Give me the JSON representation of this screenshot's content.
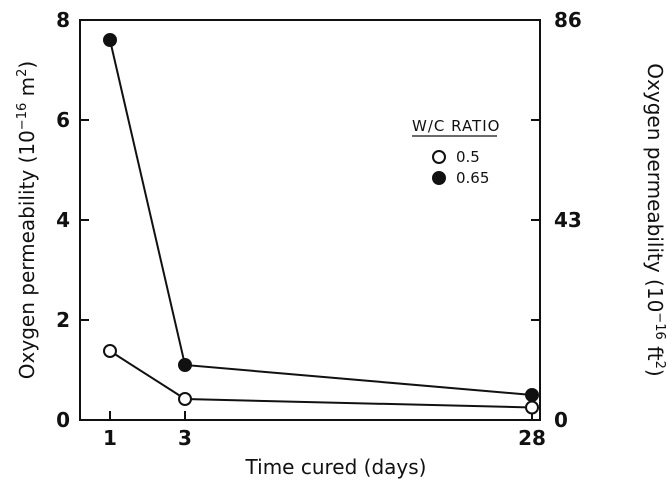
{
  "chart_data": {
    "type": "line",
    "x": [
      1,
      3,
      28
    ],
    "x_ticks": [
      "1",
      "3",
      "28"
    ],
    "xlabel": "Time cured (days)",
    "ylabel_left": {
      "prefix": "Oxygen permeability (10",
      "exp": "−16",
      "unit": " m",
      "unit_exp": "2",
      "suffix": ")"
    },
    "ylabel_right": {
      "prefix": "Oxygen permeability (10",
      "exp": "−16",
      "unit": " ft",
      "unit_exp": "2",
      "suffix": ")"
    },
    "ylim": [
      0,
      8
    ],
    "y_ticks_left": [
      "0",
      "2",
      "4",
      "6",
      "8"
    ],
    "y_ticks_right": [
      {
        "value": 0,
        "label": "0"
      },
      {
        "value": 4,
        "label": "43"
      },
      {
        "value": 8,
        "label": "86"
      }
    ],
    "legend": {
      "title": "W/C RATIO",
      "position": "top-right"
    },
    "series": [
      {
        "name": "0.5",
        "marker": "open-circle",
        "values": [
          1.38,
          0.42,
          0.25
        ]
      },
      {
        "name": "0.65",
        "marker": "filled-circle",
        "values": [
          7.6,
          1.1,
          0.5
        ]
      }
    ]
  }
}
